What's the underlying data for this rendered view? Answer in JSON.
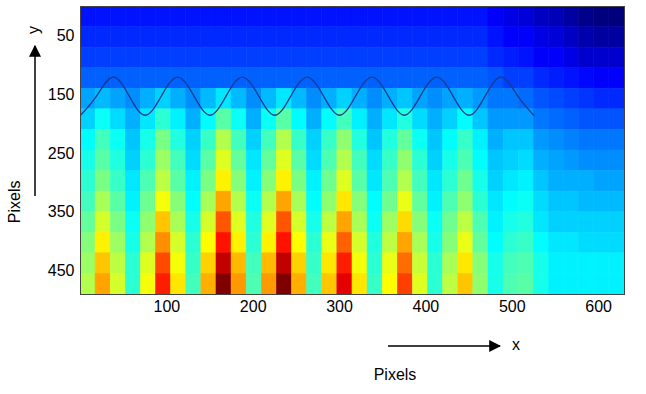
{
  "chart_data": {
    "type": "heatmap",
    "x_label": "Pixels",
    "y_label": "Pixels",
    "x_arrow_label": "x",
    "y_arrow_label": "y",
    "xlim": [
      0,
      630
    ],
    "ylim": [
      0,
      490
    ],
    "xticks": [
      100,
      200,
      300,
      400,
      500,
      600
    ],
    "yticks": [
      50,
      150,
      250,
      350,
      450
    ],
    "x": [
      8.75,
      26.25,
      43.75,
      61.25,
      78.75,
      96.25,
      113.75,
      131.25,
      148.75,
      166.25,
      183.75,
      201.25,
      218.75,
      236.25,
      253.75,
      271.25,
      288.75,
      306.25,
      323.75,
      341.25,
      358.75,
      376.25,
      393.75,
      411.25,
      428.75,
      446.25,
      463.75,
      481.25,
      498.75,
      516.25,
      533.75,
      551.25,
      568.75,
      586.25,
      603.75,
      621.25
    ],
    "y": [
      17.5,
      52.5,
      87.5,
      122.5,
      157.5,
      192.5,
      227.5,
      262.5,
      297.5,
      332.5,
      367.5,
      402.5,
      437.5,
      472.5
    ],
    "z": [
      [
        0.18,
        0.18,
        0.18,
        0.18,
        0.18,
        0.18,
        0.18,
        0.18,
        0.18,
        0.18,
        0.18,
        0.18,
        0.18,
        0.18,
        0.18,
        0.18,
        0.18,
        0.18,
        0.18,
        0.18,
        0.18,
        0.18,
        0.18,
        0.18,
        0.18,
        0.18,
        0.18,
        0.16,
        0.14,
        0.13,
        0.11,
        0.1,
        0.08,
        0.06,
        0.05,
        0.05
      ],
      [
        0.2,
        0.2,
        0.2,
        0.2,
        0.2,
        0.2,
        0.2,
        0.2,
        0.2,
        0.2,
        0.2,
        0.2,
        0.2,
        0.2,
        0.2,
        0.2,
        0.2,
        0.2,
        0.2,
        0.2,
        0.2,
        0.2,
        0.2,
        0.2,
        0.2,
        0.2,
        0.2,
        0.18,
        0.16,
        0.16,
        0.14,
        0.13,
        0.11,
        0.09,
        0.08,
        0.08
      ],
      [
        0.22,
        0.22,
        0.22,
        0.22,
        0.22,
        0.22,
        0.22,
        0.22,
        0.22,
        0.22,
        0.22,
        0.22,
        0.22,
        0.22,
        0.22,
        0.22,
        0.22,
        0.22,
        0.22,
        0.22,
        0.22,
        0.22,
        0.22,
        0.22,
        0.22,
        0.22,
        0.22,
        0.2,
        0.19,
        0.18,
        0.16,
        0.16,
        0.14,
        0.12,
        0.12,
        0.12
      ],
      [
        0.25,
        0.25,
        0.25,
        0.25,
        0.25,
        0.25,
        0.25,
        0.25,
        0.25,
        0.25,
        0.25,
        0.25,
        0.25,
        0.25,
        0.25,
        0.25,
        0.25,
        0.25,
        0.25,
        0.25,
        0.25,
        0.25,
        0.25,
        0.25,
        0.25,
        0.25,
        0.25,
        0.24,
        0.22,
        0.22,
        0.2,
        0.19,
        0.18,
        0.17,
        0.16,
        0.16
      ],
      [
        0.31,
        0.33,
        0.31,
        0.29,
        0.32,
        0.35,
        0.32,
        0.29,
        0.33,
        0.37,
        0.33,
        0.29,
        0.33,
        0.37,
        0.33,
        0.29,
        0.32,
        0.35,
        0.32,
        0.29,
        0.32,
        0.34,
        0.31,
        0.29,
        0.31,
        0.32,
        0.3,
        0.27,
        0.27,
        0.26,
        0.24,
        0.23,
        0.22,
        0.21,
        0.2,
        0.2
      ],
      [
        0.35,
        0.4,
        0.36,
        0.32,
        0.37,
        0.43,
        0.38,
        0.32,
        0.39,
        0.47,
        0.4,
        0.32,
        0.4,
        0.47,
        0.39,
        0.32,
        0.39,
        0.45,
        0.38,
        0.32,
        0.37,
        0.42,
        0.36,
        0.32,
        0.35,
        0.39,
        0.34,
        0.3,
        0.3,
        0.3,
        0.27,
        0.26,
        0.25,
        0.24,
        0.24,
        0.24
      ],
      [
        0.39,
        0.45,
        0.4,
        0.34,
        0.41,
        0.5,
        0.42,
        0.35,
        0.44,
        0.55,
        0.45,
        0.35,
        0.45,
        0.55,
        0.44,
        0.35,
        0.44,
        0.52,
        0.42,
        0.34,
        0.42,
        0.48,
        0.4,
        0.34,
        0.39,
        0.44,
        0.38,
        0.32,
        0.34,
        0.34,
        0.3,
        0.29,
        0.28,
        0.27,
        0.27,
        0.27
      ],
      [
        0.41,
        0.47,
        0.42,
        0.35,
        0.43,
        0.53,
        0.45,
        0.36,
        0.47,
        0.59,
        0.48,
        0.37,
        0.48,
        0.59,
        0.47,
        0.36,
        0.46,
        0.55,
        0.45,
        0.36,
        0.44,
        0.52,
        0.43,
        0.35,
        0.41,
        0.46,
        0.39,
        0.34,
        0.35,
        0.36,
        0.32,
        0.31,
        0.3,
        0.29,
        0.29,
        0.29
      ],
      [
        0.43,
        0.5,
        0.44,
        0.37,
        0.46,
        0.56,
        0.47,
        0.38,
        0.5,
        0.63,
        0.51,
        0.38,
        0.51,
        0.63,
        0.5,
        0.38,
        0.49,
        0.59,
        0.47,
        0.37,
        0.46,
        0.55,
        0.45,
        0.37,
        0.43,
        0.49,
        0.41,
        0.35,
        0.37,
        0.38,
        0.34,
        0.32,
        0.32,
        0.32,
        0.31,
        0.31
      ],
      [
        0.45,
        0.54,
        0.47,
        0.38,
        0.49,
        0.61,
        0.51,
        0.39,
        0.54,
        0.7,
        0.55,
        0.4,
        0.55,
        0.7,
        0.54,
        0.39,
        0.52,
        0.64,
        0.51,
        0.39,
        0.49,
        0.6,
        0.48,
        0.38,
        0.46,
        0.52,
        0.43,
        0.37,
        0.39,
        0.4,
        0.36,
        0.34,
        0.34,
        0.33,
        0.33,
        0.33
      ],
      [
        0.48,
        0.58,
        0.5,
        0.4,
        0.52,
        0.67,
        0.54,
        0.41,
        0.58,
        0.77,
        0.59,
        0.42,
        0.59,
        0.77,
        0.58,
        0.41,
        0.56,
        0.7,
        0.54,
        0.4,
        0.53,
        0.65,
        0.51,
        0.4,
        0.49,
        0.56,
        0.46,
        0.38,
        0.41,
        0.42,
        0.37,
        0.35,
        0.35,
        0.35,
        0.35,
        0.35
      ],
      [
        0.51,
        0.63,
        0.53,
        0.41,
        0.55,
        0.72,
        0.58,
        0.43,
        0.62,
        0.83,
        0.63,
        0.43,
        0.63,
        0.83,
        0.62,
        0.43,
        0.6,
        0.76,
        0.58,
        0.42,
        0.56,
        0.7,
        0.54,
        0.41,
        0.51,
        0.6,
        0.48,
        0.39,
        0.43,
        0.44,
        0.39,
        0.37,
        0.37,
        0.36,
        0.36,
        0.36
      ],
      [
        0.53,
        0.67,
        0.56,
        0.43,
        0.59,
        0.78,
        0.61,
        0.44,
        0.66,
        0.9,
        0.68,
        0.45,
        0.68,
        0.9,
        0.66,
        0.44,
        0.64,
        0.82,
        0.61,
        0.43,
        0.6,
        0.75,
        0.57,
        0.43,
        0.54,
        0.64,
        0.51,
        0.41,
        0.45,
        0.46,
        0.41,
        0.38,
        0.38,
        0.38,
        0.38,
        0.38
      ],
      [
        0.55,
        0.7,
        0.58,
        0.43,
        0.61,
        0.82,
        0.64,
        0.45,
        0.69,
        0.96,
        0.71,
        0.46,
        0.71,
        0.96,
        0.69,
        0.45,
        0.67,
        0.87,
        0.64,
        0.44,
        0.62,
        0.79,
        0.59,
        0.43,
        0.56,
        0.67,
        0.52,
        0.41,
        0.46,
        0.47,
        0.41,
        0.38,
        0.38,
        0.38,
        0.38,
        0.38
      ]
    ],
    "curve": {
      "color": "#1c3a8c",
      "x": [
        0,
        18.75,
        37.5,
        56.25,
        75,
        93.75,
        112.5,
        131.25,
        150,
        168.75,
        187.5,
        206.25,
        225,
        243.75,
        262.5,
        281.25,
        300,
        318.75,
        337.5,
        356.25,
        375,
        393.75,
        412.5,
        431.25,
        450,
        468.75,
        487.5,
        506.25,
        525
      ],
      "y": [
        185,
        152,
        120,
        152,
        185,
        152,
        120,
        152,
        185,
        152,
        120,
        152,
        185,
        152,
        120,
        152,
        185,
        152,
        120,
        152,
        185,
        152,
        120,
        152,
        185,
        152,
        120,
        152,
        185
      ]
    }
  }
}
